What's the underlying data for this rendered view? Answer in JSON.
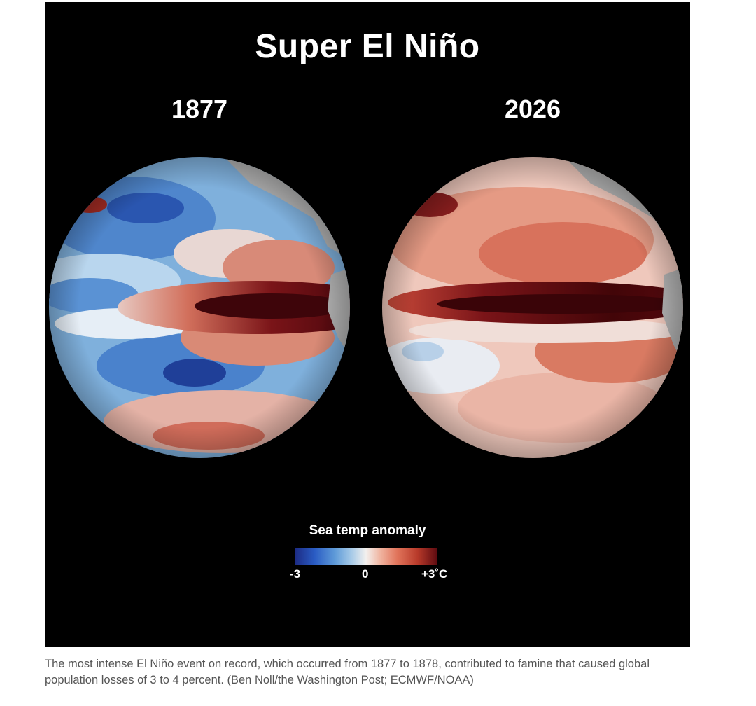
{
  "figure": {
    "title": "Super El Niño",
    "maps": [
      {
        "year": "1877"
      },
      {
        "year": "2026"
      }
    ],
    "legend": {
      "title": "Sea temp anomaly",
      "min_label": "-3",
      "mid_label": "0",
      "max_label": "+3˚C",
      "colors": {
        "cold": "#1c2a82",
        "neutral": "#f3f0ee",
        "warm": "#5c0a10",
        "land": "#b3b3b3",
        "background": "#000000"
      }
    }
  },
  "caption": "The most intense El Niño event on record, which occurred from 1877 to 1878, contributed to famine that caused global population losses of 3 to 4 percent. (Ben Noll/the Washington Post; ECMWF/NOAA)"
}
